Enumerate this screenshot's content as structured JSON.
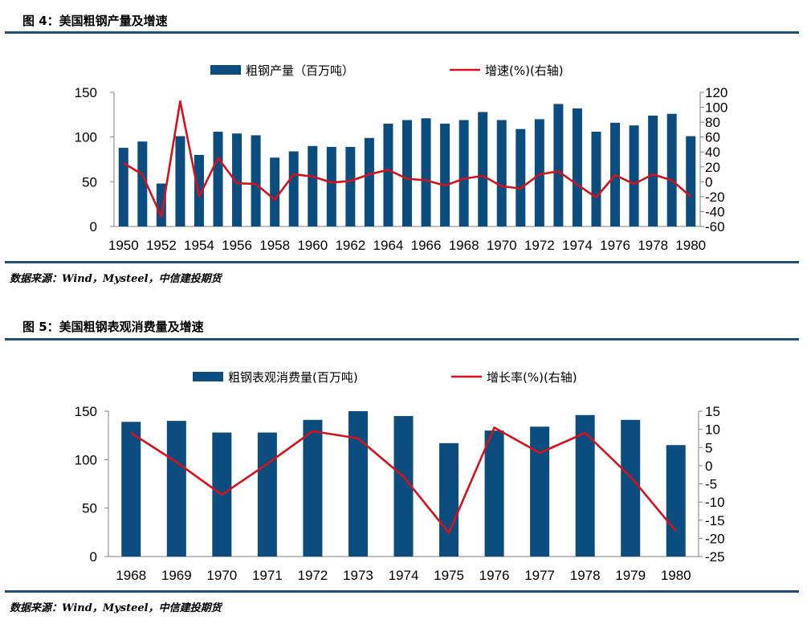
{
  "figures": [
    {
      "title": "图 4：美国粗钢产量及增速",
      "source": "数据来源：Wind，Mysteel，中信建投期货"
    },
    {
      "title": "图 5：美国粗钢表观消费量及增速",
      "source": "数据来源：Wind，Mysteel，中信建投期货"
    }
  ],
  "colors": {
    "bar": "#0a4d7e",
    "line": "#d7111b",
    "rule": "#1f4e79"
  },
  "chart_data": [
    {
      "type": "bar",
      "title": "图 4：美国粗钢产量及增速",
      "categories": [
        "1950",
        "1951",
        "1952",
        "1953",
        "1954",
        "1955",
        "1956",
        "1957",
        "1958",
        "1959",
        "1960",
        "1961",
        "1962",
        "1963",
        "1964",
        "1965",
        "1966",
        "1967",
        "1968",
        "1969",
        "1970",
        "1971",
        "1972",
        "1973",
        "1974",
        "1975",
        "1976",
        "1977",
        "1978",
        "1979",
        "1980"
      ],
      "x_tick_labels": [
        "1950",
        "1952",
        "1954",
        "1956",
        "1958",
        "1960",
        "1962",
        "1964",
        "1966",
        "1968",
        "1970",
        "1972",
        "1974",
        "1976",
        "1978",
        "1980"
      ],
      "series": [
        {
          "name": "粗钢产量（百万吨）",
          "type": "bar",
          "axis": "left",
          "values": [
            88,
            95,
            48,
            101,
            80,
            106,
            104,
            102,
            77,
            84,
            90,
            89,
            89,
            99,
            115,
            119,
            121,
            115,
            119,
            128,
            119,
            109,
            120,
            137,
            132,
            106,
            116,
            113,
            124,
            126,
            101
          ]
        },
        {
          "name": "增速(%)(右轴)",
          "type": "line",
          "axis": "right",
          "values": [
            25,
            10,
            -47,
            108,
            -20,
            32,
            -2,
            -3,
            -24,
            10,
            7,
            -1,
            1,
            10,
            16,
            4,
            2,
            -5,
            4,
            8,
            -6,
            -9,
            10,
            14,
            -4,
            -21,
            9,
            -3,
            10,
            2,
            -20
          ]
        }
      ],
      "y_left": {
        "min": 0,
        "max": 150,
        "ticks": [
          0,
          50,
          100,
          150
        ]
      },
      "y_right": {
        "min": -60,
        "max": 120,
        "ticks": [
          -60,
          -40,
          -20,
          0,
          20,
          40,
          60,
          80,
          100,
          120
        ]
      },
      "legend": [
        "粗钢产量（百万吨）",
        "增速(%)(右轴)"
      ],
      "legend_position": "top"
    },
    {
      "type": "bar",
      "title": "图 5：美国粗钢表观消费量及增速",
      "categories": [
        "1968",
        "1969",
        "1970",
        "1971",
        "1972",
        "1973",
        "1974",
        "1975",
        "1976",
        "1977",
        "1978",
        "1979",
        "1980"
      ],
      "series": [
        {
          "name": "粗钢表观消费量(百万吨)",
          "type": "bar",
          "axis": "left",
          "values": [
            139,
            140,
            128,
            128,
            141,
            150,
            145,
            117,
            130,
            134,
            146,
            141,
            115
          ]
        },
        {
          "name": "增长率(%)(右轴)",
          "type": "line",
          "axis": "right",
          "values": [
            9,
            1,
            -8,
            0.5,
            9.5,
            7.5,
            -3,
            -18.5,
            10.5,
            3.5,
            9,
            -3,
            -18
          ]
        }
      ],
      "y_left": {
        "min": 0,
        "max": 150,
        "ticks": [
          0,
          50,
          100,
          150
        ]
      },
      "y_right": {
        "min": -25,
        "max": 15,
        "ticks": [
          -25,
          -20,
          -15,
          -10,
          -5,
          0,
          5,
          10,
          15
        ]
      },
      "legend": [
        "粗钢表观消费量(百万吨)",
        "增长率(%)(右轴)"
      ],
      "legend_position": "top"
    }
  ]
}
